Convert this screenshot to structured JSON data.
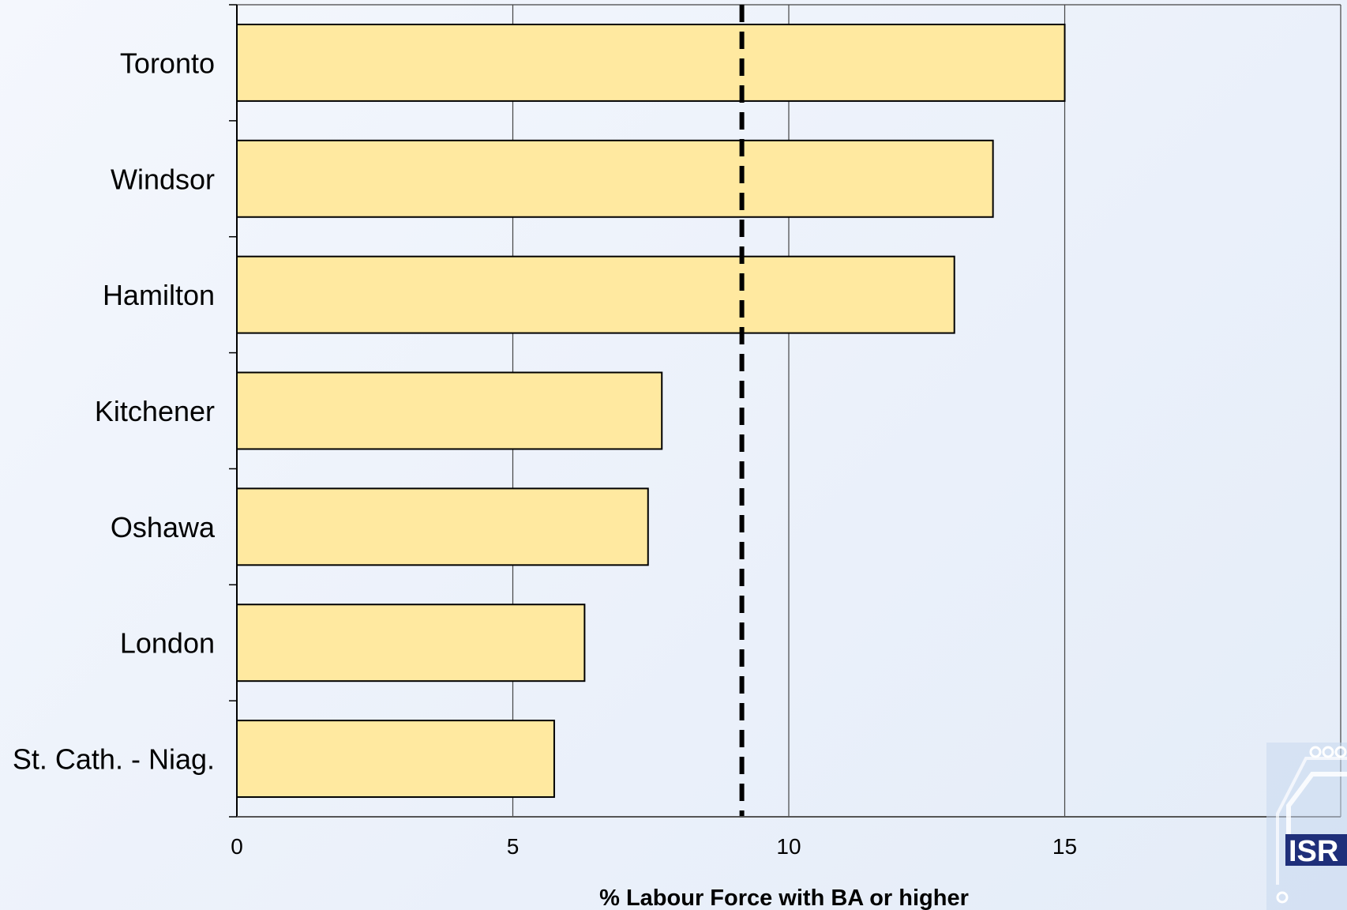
{
  "chart_data": {
    "type": "bar",
    "orientation": "horizontal",
    "categories": [
      "Toronto",
      "Windsor",
      "Hamilton",
      "Kitchener",
      "Oshawa",
      "London",
      "St. Cath. - Niag."
    ],
    "values": [
      15.0,
      13.7,
      13.0,
      7.7,
      7.45,
      6.3,
      5.75
    ],
    "reference_line": {
      "value": 9.15,
      "style": "dashed"
    },
    "xlabel": "% Labour Force with BA or higher",
    "xlim": [
      0,
      20
    ],
    "xticks": [
      "0",
      "5",
      "10",
      "15",
      "20"
    ],
    "grid": "vertical",
    "bar_color": "#FFE9A0"
  },
  "logo": {
    "text": "ISR"
  }
}
